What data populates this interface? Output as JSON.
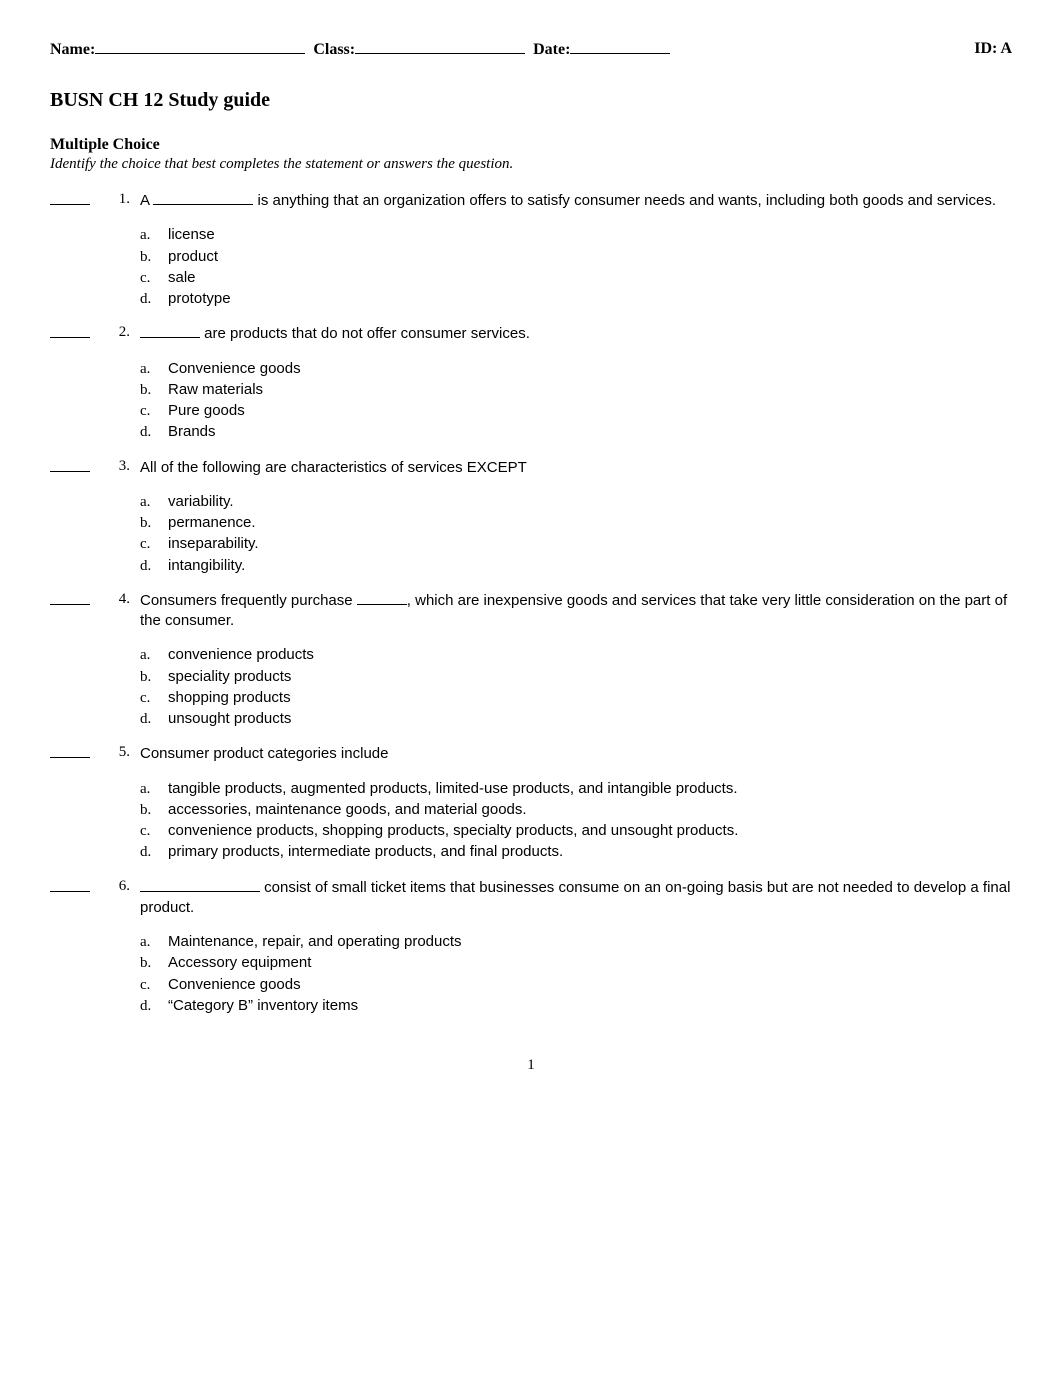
{
  "header": {
    "name_label": "Name:",
    "class_label": "Class:",
    "date_label": "Date:",
    "id_label": "ID: A"
  },
  "title": "BUSN CH 12 Study guide",
  "section": {
    "heading": "Multiple Choice",
    "instruction": "Identify the choice that best completes the statement or answers the question."
  },
  "questions": [
    {
      "num": "1.",
      "pre": "A ",
      "blank_width": 100,
      "post": " is anything that an organization offers to satisfy consumer needs and wants, including both goods and services.",
      "choices": [
        {
          "letter": "a.",
          "text": "license"
        },
        {
          "letter": "b.",
          "text": "product"
        },
        {
          "letter": "c.",
          "text": "sale"
        },
        {
          "letter": "d.",
          "text": "prototype"
        }
      ]
    },
    {
      "num": "2.",
      "pre": "",
      "blank_width": 60,
      "post": " are products that do not offer consumer services.",
      "choices": [
        {
          "letter": "a.",
          "text": "Convenience goods"
        },
        {
          "letter": "b.",
          "text": "Raw materials"
        },
        {
          "letter": "c.",
          "text": "Pure goods"
        },
        {
          "letter": "d.",
          "text": "Brands"
        }
      ]
    },
    {
      "num": "3.",
      "pre": "All of the following are characteristics of services EXCEPT",
      "blank_width": 0,
      "post": "",
      "choices": [
        {
          "letter": "a.",
          "text": "variability."
        },
        {
          "letter": "b.",
          "text": "permanence."
        },
        {
          "letter": "c.",
          "text": "inseparability."
        },
        {
          "letter": "d.",
          "text": "intangibility."
        }
      ]
    },
    {
      "num": "4.",
      "pre": "Consumers frequently purchase ",
      "blank_width": 50,
      "post": ", which are inexpensive goods and services that take very little consideration on the part of the consumer.",
      "choices": [
        {
          "letter": "a.",
          "text": "convenience products"
        },
        {
          "letter": "b.",
          "text": "speciality products"
        },
        {
          "letter": "c.",
          "text": "shopping products"
        },
        {
          "letter": "d.",
          "text": "unsought products"
        }
      ]
    },
    {
      "num": "5.",
      "pre": "Consumer product categories include",
      "blank_width": 0,
      "post": "",
      "choices": [
        {
          "letter": "a.",
          "text": "tangible products, augmented products, limited-use products, and intangible products."
        },
        {
          "letter": "b.",
          "text": "accessories, maintenance goods, and material goods."
        },
        {
          "letter": "c.",
          "text": "convenience products, shopping products, specialty products, and unsought products."
        },
        {
          "letter": "d.",
          "text": "primary products, intermediate products, and final products."
        }
      ]
    },
    {
      "num": "6.",
      "pre": " ",
      "blank_width": 120,
      "post": " consist of small ticket items that businesses consume on an on-going basis but are not needed to develop a final product.",
      "choices": [
        {
          "letter": "a.",
          "text": "Maintenance, repair, and operating products"
        },
        {
          "letter": "b.",
          "text": "Accessory equipment"
        },
        {
          "letter": "c.",
          "text": "Convenience goods"
        },
        {
          "letter": "d.",
          "text": "“Category B”  inventory items"
        }
      ]
    }
  ],
  "page_number": "1",
  "colors": {
    "text": "#000000",
    "background": "#ffffff"
  },
  "fonts": {
    "serif": "Times New Roman",
    "sans": "Arial"
  }
}
